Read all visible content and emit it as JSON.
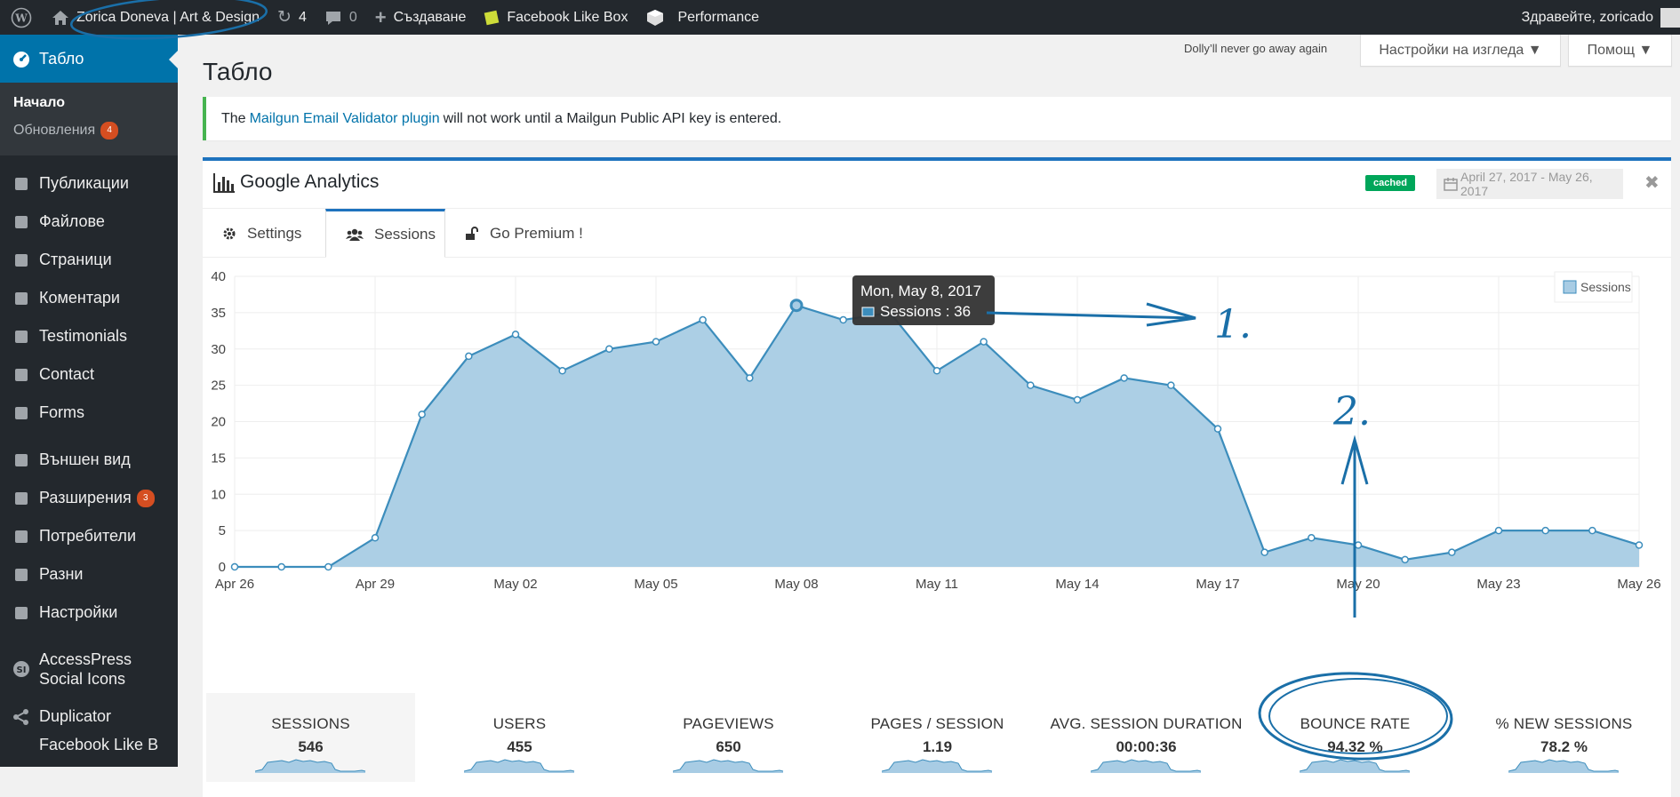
{
  "adminbar": {
    "site_name": "Zorica Doneva | Art & Design",
    "updates_count": "4",
    "comments_count": "0",
    "new_label": "Създаване",
    "fb_label": "Facebook Like Box",
    "perf_label": "Performance",
    "greeting": "Здравейте, zoricado"
  },
  "sidebar": {
    "dashboard": "Табло",
    "home": "Начало",
    "updates": "Обновления",
    "updates_badge": "4",
    "items": [
      {
        "label": "Публикации",
        "icon": "pin-icon"
      },
      {
        "label": "Файлове",
        "icon": "media-icon"
      },
      {
        "label": "Страници",
        "icon": "pages-icon"
      },
      {
        "label": "Коментари",
        "icon": "comments-icon"
      },
      {
        "label": "Testimonials",
        "icon": "pin-icon"
      },
      {
        "label": "Contact",
        "icon": "mail-icon"
      },
      {
        "label": "Forms",
        "icon": "forms-icon"
      }
    ],
    "items2": [
      {
        "label": "Външен вид",
        "icon": "appearance-icon"
      },
      {
        "label": "Разширения",
        "icon": "plugins-icon",
        "badge": "3"
      },
      {
        "label": "Потребители",
        "icon": "users-icon"
      },
      {
        "label": "Разни",
        "icon": "tools-icon"
      },
      {
        "label": "Настройки",
        "icon": "settings-icon"
      }
    ],
    "accesspress_line1": "AccessPress",
    "accesspress_line2": "Social Icons",
    "duplicator": "Duplicator",
    "last_item": "Facebook Like B"
  },
  "header": {
    "title": "Табло",
    "dolly": "Dolly’ll never go away again",
    "screen_options": "Настройки на изгледа ▼",
    "help": "Помощ ▼"
  },
  "notice": {
    "prefix": "The",
    "link": "Mailgun Email Validator plugin",
    "suffix": "will not work until a Mailgun Public API key is entered."
  },
  "ga": {
    "title": "Google Analytics",
    "cached": "cached",
    "date_range": "April 27, 2017 - May 26, 2017",
    "close": "✖",
    "tabs": [
      "Settings",
      "Sessions",
      "Go Premium !"
    ],
    "legend": "Sessions",
    "tooltip_title": "Mon, May 8, 2017",
    "tooltip_value": "Sessions : 36",
    "stats": [
      {
        "label": "SESSIONS",
        "value": "546"
      },
      {
        "label": "USERS",
        "value": "455"
      },
      {
        "label": "PAGEVIEWS",
        "value": "650"
      },
      {
        "label": "PAGES / SESSION",
        "value": "1.19"
      },
      {
        "label": "AVG. SESSION DURATION",
        "value": "00:00:36"
      },
      {
        "label": "BOUNCE RATE",
        "value": "94.32 %"
      },
      {
        "label": "% NEW SESSIONS",
        "value": "78.2 %"
      }
    ]
  },
  "annotations": {
    "one": "1.",
    "two": "2."
  },
  "colors": {
    "wp_blue": "#0073aa",
    "area_fill": "#a8cce4",
    "line": "#3c8dbc",
    "cached_green": "#00a65a"
  },
  "chart_data": {
    "type": "area",
    "series": [
      {
        "name": "Sessions",
        "values": [
          0,
          0,
          0,
          4,
          21,
          29,
          32,
          27,
          30,
          31,
          34,
          26,
          36,
          34,
          35,
          27,
          31,
          25,
          23,
          26,
          25,
          19,
          2,
          4,
          3,
          1,
          2,
          5,
          5,
          5,
          3
        ]
      }
    ],
    "x_tick_labels": [
      "Apr 26",
      "Apr 29",
      "May 02",
      "May 05",
      "May 08",
      "May 11",
      "May 14",
      "May 17",
      "May 20",
      "May 23",
      "May 26"
    ],
    "y_ticks": [
      0,
      5,
      10,
      15,
      20,
      25,
      30,
      35,
      40
    ],
    "ylim": [
      0,
      40
    ],
    "legend_position": "top-right",
    "grid": true
  }
}
